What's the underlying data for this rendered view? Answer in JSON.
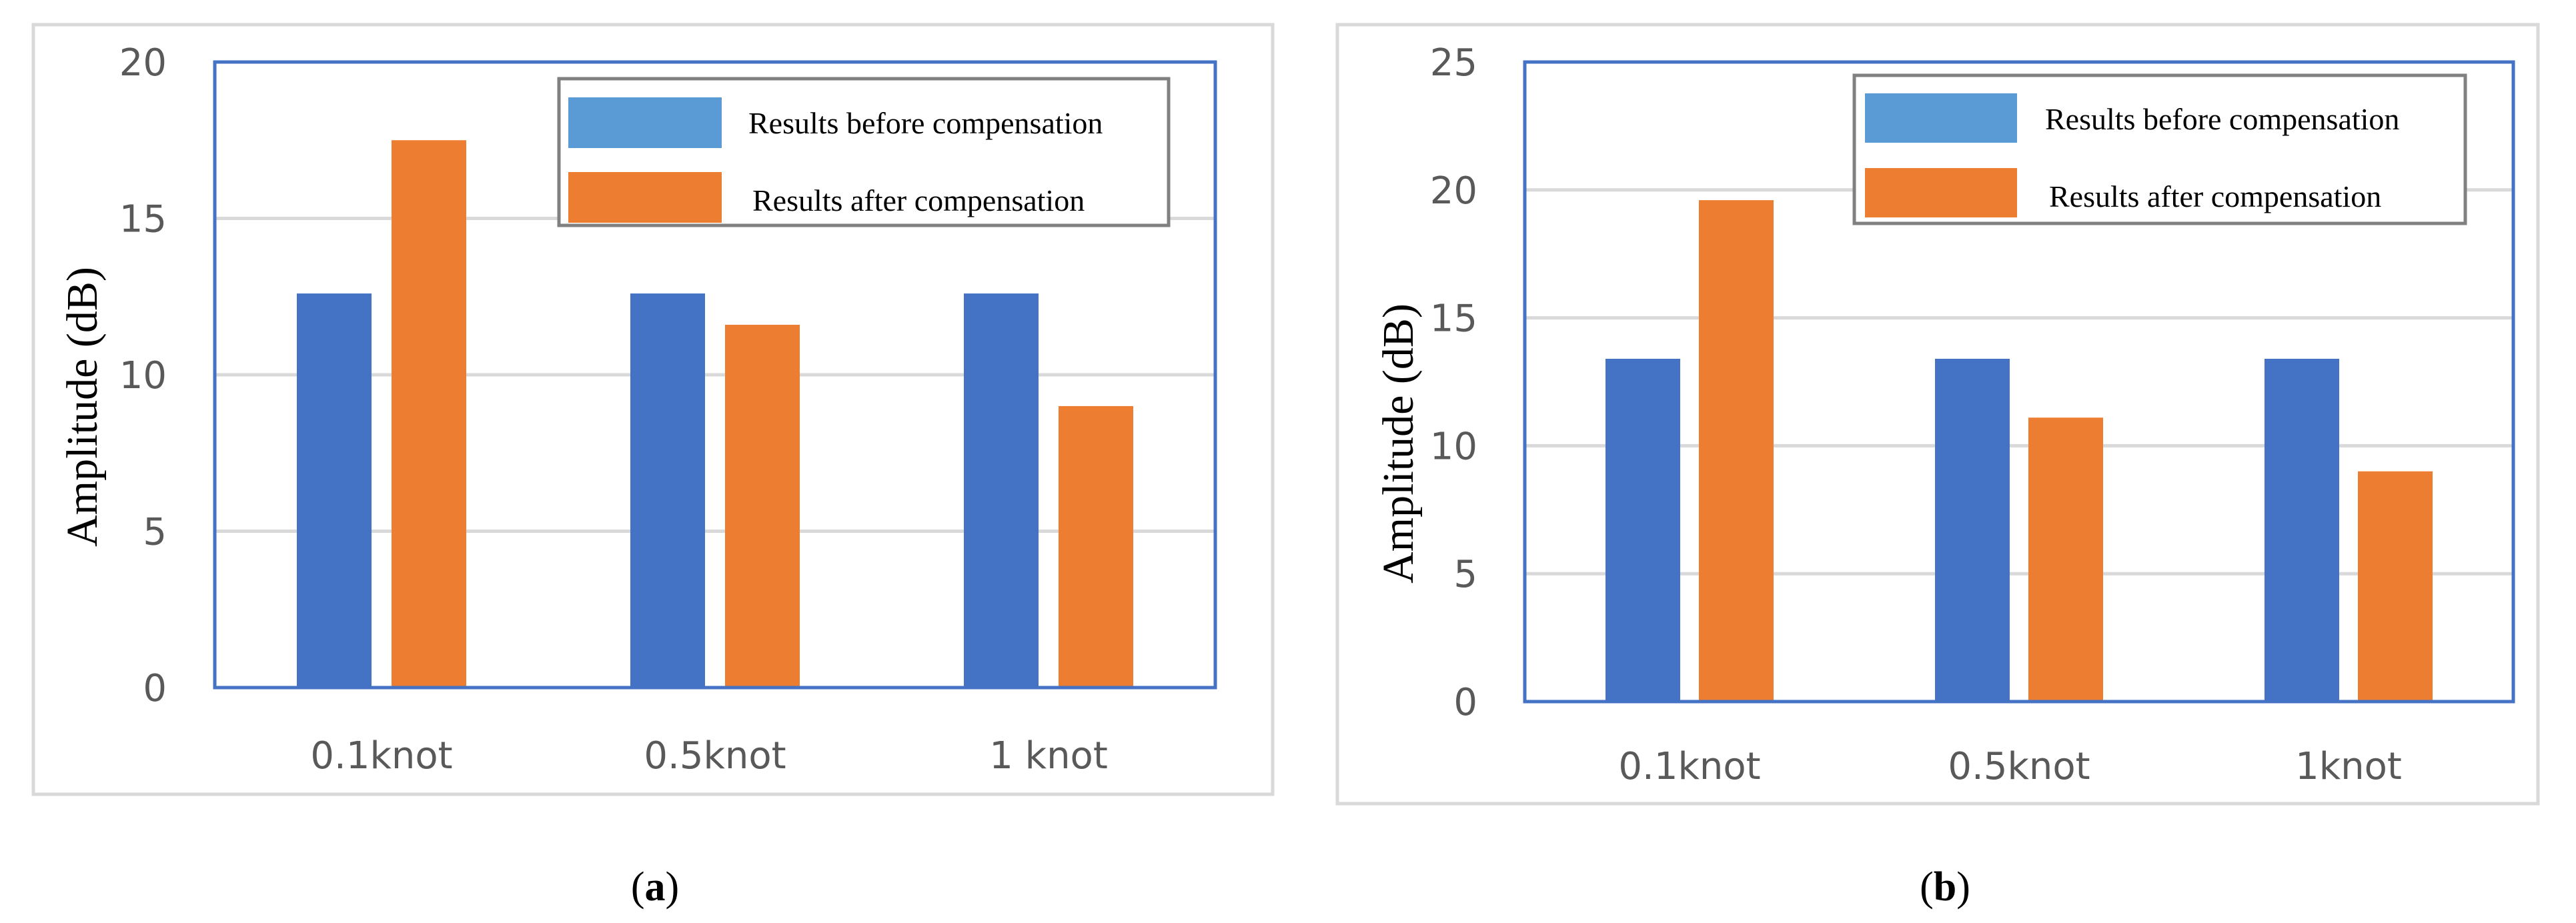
{
  "colors": {
    "before": "#4472C4",
    "before_legend": "#5B9BD5",
    "after": "#ED7D31",
    "axis_border": "#4472C4",
    "gridline": "#D9D9D9",
    "frame": "#D9D9D9",
    "legend_border": "#808080"
  },
  "chart_data": [
    {
      "type": "bar",
      "panel": "a",
      "categories": [
        "0.1knot",
        "0.5knot",
        "1 knot"
      ],
      "series": [
        {
          "name": "Results before compensation",
          "values": [
            12.6,
            12.6,
            12.6
          ]
        },
        {
          "name": "Results after compensation",
          "values": [
            17.5,
            11.6,
            9.0
          ]
        }
      ],
      "ylabel": "Amplitude (dB)",
      "xlabel": "",
      "ylim": [
        0,
        20
      ],
      "yticks": [
        "0",
        "5",
        "10",
        "15",
        "20"
      ],
      "grid": true,
      "legend_position": "top-right",
      "caption": {
        "open": "(",
        "letter": "a",
        "close": ")"
      }
    },
    {
      "type": "bar",
      "panel": "b",
      "categories": [
        "0.1knot",
        "0.5knot",
        "1knot"
      ],
      "series": [
        {
          "name": "Results before compensation",
          "values": [
            13.4,
            13.4,
            13.4
          ]
        },
        {
          "name": "Results after compensation",
          "values": [
            19.6,
            11.1,
            9.0
          ]
        }
      ],
      "ylabel": "Amplitude (dB)",
      "xlabel": "",
      "ylim": [
        0,
        25
      ],
      "yticks": [
        "0",
        "5",
        "10",
        "15",
        "20",
        "25"
      ],
      "grid": true,
      "legend_position": "top-right",
      "caption": {
        "open": "(",
        "letter": "b",
        "close": ")"
      }
    }
  ]
}
